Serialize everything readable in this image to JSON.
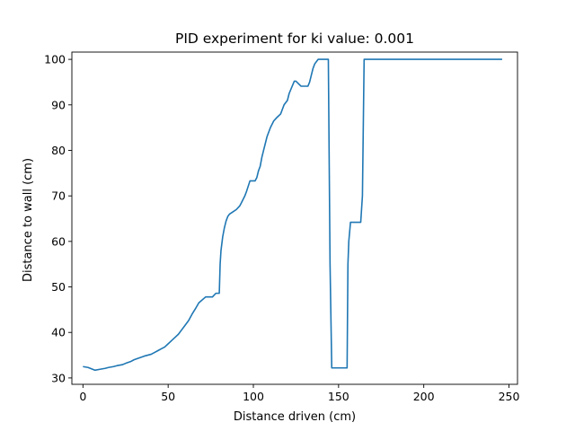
{
  "chart_data": {
    "type": "line",
    "title": "PID experiment for ki value: 0.001",
    "xlabel": "Distance driven (cm)",
    "ylabel": "Distance to wall (cm)",
    "xlim": [
      -6.5,
      255
    ],
    "ylim": [
      28.6,
      101.6
    ],
    "xticks": [
      0,
      50,
      100,
      150,
      200,
      250
    ],
    "yticks": [
      30,
      40,
      50,
      60,
      70,
      80,
      90,
      100
    ],
    "grid": false,
    "color": "#1f77b4",
    "series": [
      {
        "x": [
          0,
          3,
          5,
          7,
          10,
          13,
          15,
          18,
          20,
          23,
          25,
          28,
          30,
          33,
          36,
          40,
          42,
          44,
          46,
          48,
          50,
          52,
          54,
          56,
          58,
          60,
          62,
          64,
          66,
          68,
          72,
          74,
          76,
          78,
          80,
          80.5,
          81,
          82,
          83,
          84,
          85,
          86,
          88,
          90,
          92,
          93,
          95,
          96,
          98,
          100,
          101,
          102,
          103,
          104,
          105,
          106,
          107,
          108,
          110,
          112,
          114,
          116,
          117,
          118,
          120,
          121,
          124,
          125,
          128,
          132,
          133,
          134,
          135,
          136,
          137,
          138,
          140,
          142,
          144,
          145,
          146,
          152,
          154,
          155,
          155.5,
          156,
          157,
          158,
          162,
          163,
          164,
          165,
          180,
          246
        ],
        "y": [
          32.5,
          32.3,
          32.0,
          31.7,
          31.9,
          32.1,
          32.3,
          32.5,
          32.7,
          32.9,
          33.2,
          33.6,
          34.0,
          34.4,
          34.8,
          35.2,
          35.6,
          36.0,
          36.4,
          36.8,
          37.5,
          38.2,
          38.9,
          39.6,
          40.6,
          41.6,
          42.6,
          44.0,
          45.2,
          46.5,
          47.8,
          47.8,
          47.8,
          48.6,
          48.6,
          55.0,
          58.0,
          61.0,
          63.0,
          64.5,
          65.5,
          66.0,
          66.5,
          67.0,
          67.8,
          68.5,
          70.0,
          71.0,
          73.3,
          73.3,
          73.3,
          74.0,
          75.5,
          76.5,
          78.5,
          80.0,
          81.5,
          83.0,
          85.0,
          86.5,
          87.3,
          88.0,
          89.0,
          90.0,
          91.0,
          92.5,
          95.2,
          95.2,
          94.1,
          94.1,
          95.0,
          96.5,
          98.0,
          99.0,
          99.5,
          100,
          100,
          100,
          100,
          55.0,
          32.2,
          32.2,
          32.2,
          32.2,
          55.0,
          60.0,
          64.2,
          64.2,
          64.2,
          64.2,
          70.0,
          100,
          100,
          100
        ]
      }
    ]
  }
}
